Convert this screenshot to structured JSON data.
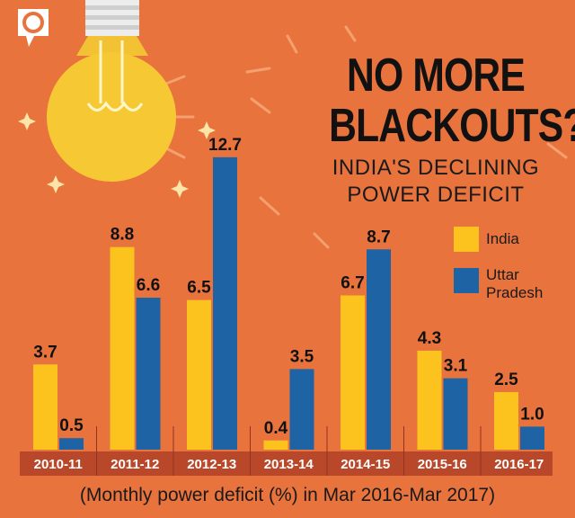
{
  "brand": {
    "logo_icon": "quint-logo-icon"
  },
  "colors": {
    "background": "#E8733D",
    "india": "#FCC31E",
    "uttar_pradesh": "#1E63A4",
    "axis_band": "#B9482A"
  },
  "chart_data": {
    "type": "bar",
    "title": "NO MORE BLACKOUTS?",
    "subtitle": "INDIA'S DECLINING POWER DEFICIT",
    "categories": [
      "2010-11",
      "2011-12",
      "2012-13",
      "2013-14",
      "2014-15",
      "2015-16",
      "2016-17"
    ],
    "series": [
      {
        "name": "India",
        "values": [
          3.7,
          8.8,
          6.5,
          0.4,
          6.7,
          4.3,
          2.5
        ],
        "labels": [
          "3.7",
          "8.8",
          "6.5",
          "0.4",
          "6.7",
          "4.3",
          "2.5"
        ]
      },
      {
        "name": "Uttar Pradesh",
        "values": [
          0.5,
          6.6,
          12.7,
          3.5,
          8.7,
          3.1,
          1.0
        ],
        "labels": [
          "0.5",
          "6.6",
          "12.7",
          "3.5",
          "8.7",
          "3.1",
          "1.0"
        ]
      }
    ],
    "legend": [
      "India",
      "Uttar Pradesh"
    ],
    "legend_position": "right",
    "footnote": "(Monthly power deficit (%) in Mar 2016-Mar 2017)",
    "ylim": [
      0,
      13
    ],
    "grid": false
  }
}
